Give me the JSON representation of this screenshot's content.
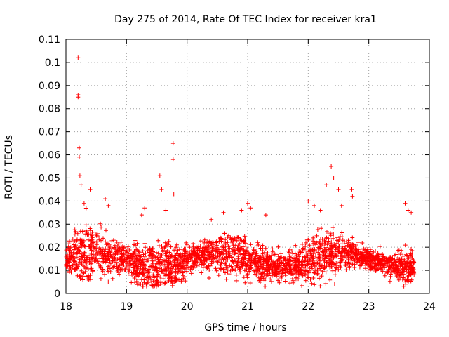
{
  "chart_data": {
    "type": "scatter",
    "title": "Day 275 of 2014, Rate Of TEC Index for receiver kra1",
    "xlabel": "GPS time / hours",
    "ylabel": "ROTI / TECUs",
    "xlim": [
      18,
      24
    ],
    "ylim": [
      0,
      0.11
    ],
    "x_ticks": [
      "18",
      "19",
      "20",
      "21",
      "22",
      "23",
      "24"
    ],
    "y_ticks": [
      "0",
      "0.01",
      "0.02",
      "0.03",
      "0.04",
      "0.05",
      "0.06",
      "0.07",
      "0.08",
      "0.09",
      "0.1",
      "0.11"
    ],
    "grid": true,
    "marker": "+",
    "series_color": "#ff0000",
    "points_approx": {
      "description": "dense cloud of ROTI values mostly between 0.005 and 0.025 across 18.0–23.75 h",
      "x": [
        18.2,
        18.2,
        18.2,
        18.22,
        18.22,
        18.23,
        18.25,
        18.3,
        18.4,
        18.65,
        18.7,
        19.25,
        19.3,
        19.55,
        19.58,
        19.65,
        19.77,
        19.77,
        19.78,
        20.4,
        20.6,
        20.9,
        21.0,
        21.05,
        21.3,
        22.0,
        22.1,
        22.2,
        22.3,
        22.38,
        22.42,
        22.5,
        22.55,
        22.72,
        22.73,
        23.6,
        23.65,
        23.7
      ],
      "y": [
        0.102,
        0.086,
        0.085,
        0.063,
        0.059,
        0.051,
        0.047,
        0.039,
        0.045,
        0.041,
        0.038,
        0.034,
        0.037,
        0.051,
        0.045,
        0.036,
        0.065,
        0.058,
        0.043,
        0.032,
        0.035,
        0.036,
        0.039,
        0.037,
        0.034,
        0.04,
        0.038,
        0.036,
        0.047,
        0.055,
        0.05,
        0.045,
        0.038,
        0.045,
        0.042,
        0.039,
        0.036,
        0.035
      ]
    }
  }
}
